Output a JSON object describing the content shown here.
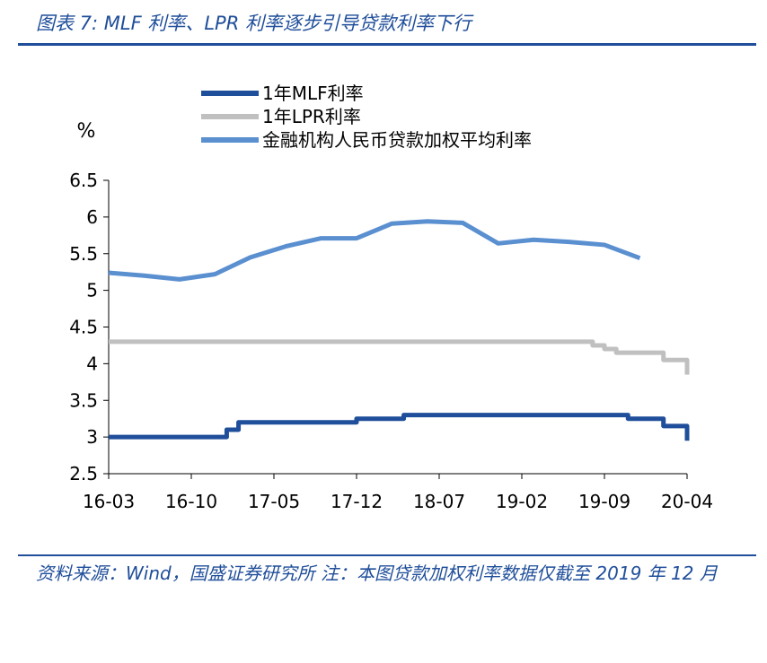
{
  "header": {
    "title": "图表 7:  MLF 利率、LPR 利率逐步引导贷款利率下行"
  },
  "footer": {
    "source": "资料来源：Wind，国盛证券研究所 注：本图贷款加权利率数据仅截至 2019 年 12 月"
  },
  "chart_data": {
    "type": "line",
    "title": "",
    "xlabel": "",
    "ylabel": "%",
    "ylim": [
      2.5,
      6.5
    ],
    "yticks": [
      2.5,
      3,
      3.5,
      4,
      4.5,
      5,
      5.5,
      6,
      6.5
    ],
    "xlim": [
      "2016-03",
      "2020-04"
    ],
    "xticks": [
      "16-03",
      "16-10",
      "17-05",
      "17-12",
      "18-07",
      "19-02",
      "19-09",
      "20-04"
    ],
    "legend": "top-left",
    "grid": false,
    "series": [
      {
        "name": "1年MLF利率",
        "color": "#1f4e9a",
        "step": true,
        "points": [
          [
            "2016-03",
            3.0
          ],
          [
            "2017-01",
            3.1
          ],
          [
            "2017-02",
            3.2
          ],
          [
            "2017-12",
            3.25
          ],
          [
            "2018-04",
            3.3
          ],
          [
            "2019-11",
            3.25
          ],
          [
            "2020-02",
            3.15
          ],
          [
            "2020-04",
            2.95
          ]
        ]
      },
      {
        "name": "1年LPR利率",
        "color": "#c0c0c0",
        "step": true,
        "points": [
          [
            "2016-03",
            4.3
          ],
          [
            "2019-08",
            4.25
          ],
          [
            "2019-09",
            4.2
          ],
          [
            "2019-10",
            4.15
          ],
          [
            "2020-02",
            4.05
          ],
          [
            "2020-04",
            3.85
          ]
        ]
      },
      {
        "name": "金融机构人民币贷款加权平均利率",
        "color": "#5a8fd0",
        "step": false,
        "points": [
          [
            "2016-03",
            5.24
          ],
          [
            "2016-06",
            5.2
          ],
          [
            "2016-09",
            5.15
          ],
          [
            "2016-12",
            5.22
          ],
          [
            "2017-03",
            5.45
          ],
          [
            "2017-06",
            5.6
          ],
          [
            "2017-09",
            5.71
          ],
          [
            "2017-12",
            5.71
          ],
          [
            "2018-03",
            5.91
          ],
          [
            "2018-06",
            5.94
          ],
          [
            "2018-09",
            5.92
          ],
          [
            "2018-12",
            5.64
          ],
          [
            "2019-03",
            5.69
          ],
          [
            "2019-06",
            5.66
          ],
          [
            "2019-09",
            5.62
          ],
          [
            "2019-12",
            5.44
          ]
        ]
      }
    ]
  }
}
